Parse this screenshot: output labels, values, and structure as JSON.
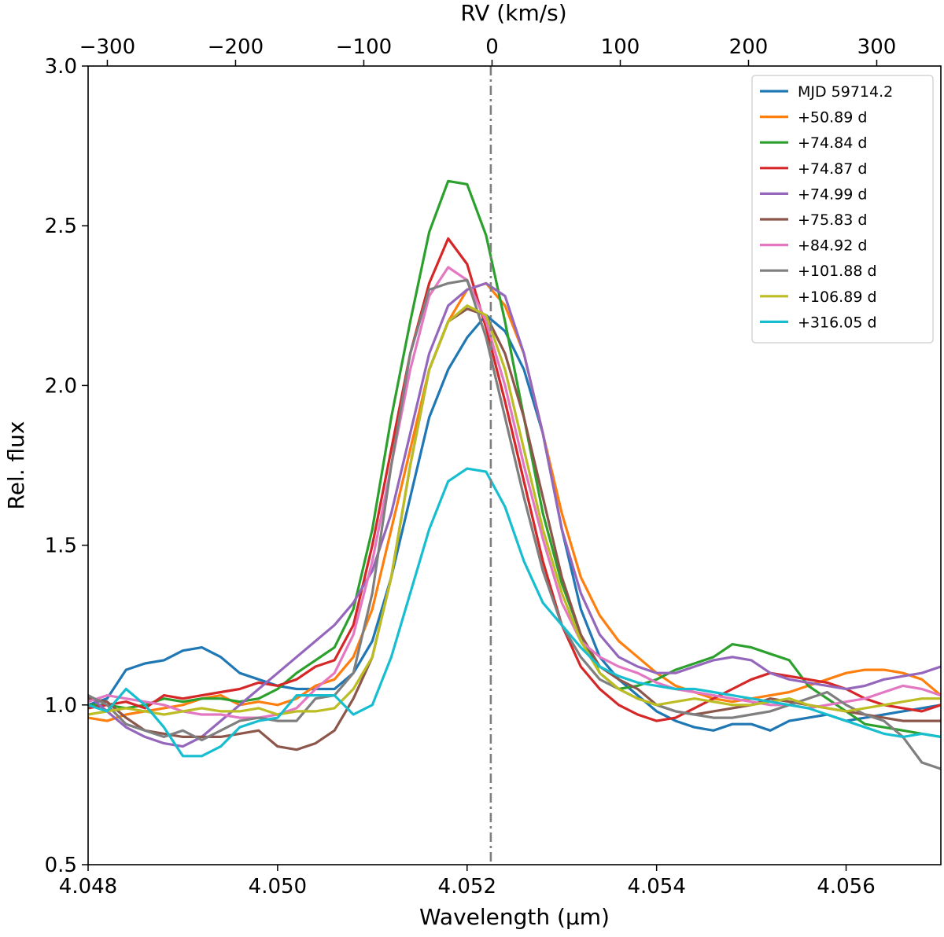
{
  "chart_data": {
    "type": "line",
    "xlabel": "Wavelength (μm)",
    "ylabel": "Rel. flux",
    "top_xlabel": "RV (km/s)",
    "xlim": [
      4.048,
      4.057
    ],
    "ylim": [
      0.5,
      3.0
    ],
    "rv_lim": [
      -315,
      350
    ],
    "xticks": [
      4.048,
      4.05,
      4.052,
      4.054,
      4.056
    ],
    "xtick_labels": [
      "4.048",
      "4.050",
      "4.052",
      "4.054",
      "4.056"
    ],
    "yticks": [
      0.5,
      1.0,
      1.5,
      2.0,
      2.5,
      3.0
    ],
    "ytick_labels": [
      "0.5",
      "1.0",
      "1.5",
      "2.0",
      "2.5",
      "3.0"
    ],
    "top_ticks": [
      -300,
      -200,
      -100,
      0,
      100,
      200,
      300
    ],
    "top_tick_labels": [
      "−300",
      "−200",
      "−100",
      "0",
      "100",
      "200",
      "300"
    ],
    "reference_line": {
      "x": 4.05225,
      "label": "0",
      "color": "#7f7f7f",
      "style": "dash-dot"
    },
    "grid": false,
    "legend_position": "top-right",
    "series": [
      {
        "name": "MJD 59714.2",
        "color": "#1f77b4",
        "x": [
          4.048,
          4.0482,
          4.0484,
          4.0486,
          4.0488,
          4.049,
          4.0492,
          4.0494,
          4.0496,
          4.0498,
          4.05,
          4.0502,
          4.0504,
          4.0506,
          4.0508,
          4.051,
          4.0512,
          4.0514,
          4.0516,
          4.0518,
          4.052,
          4.0522,
          4.0524,
          4.0526,
          4.0528,
          4.053,
          4.0532,
          4.0534,
          4.0536,
          4.0538,
          4.054,
          4.0542,
          4.0544,
          4.0546,
          4.0548,
          4.055,
          4.0552,
          4.0554,
          4.0556,
          4.0558,
          4.056,
          4.0562,
          4.0564,
          4.0566,
          4.0568,
          4.057
        ],
        "y": [
          1.0,
          1.02,
          1.11,
          1.13,
          1.14,
          1.17,
          1.18,
          1.15,
          1.1,
          1.08,
          1.06,
          1.05,
          1.05,
          1.05,
          1.1,
          1.2,
          1.4,
          1.65,
          1.9,
          2.05,
          2.15,
          2.22,
          2.17,
          2.05,
          1.85,
          1.55,
          1.3,
          1.15,
          1.08,
          1.03,
          0.98,
          0.95,
          0.93,
          0.92,
          0.94,
          0.94,
          0.92,
          0.95,
          0.96,
          0.97,
          0.95,
          0.96,
          0.97,
          0.98,
          0.99,
          1.0
        ]
      },
      {
        "name": "+50.89 d",
        "color": "#ff7f0e",
        "x": [
          4.048,
          4.0482,
          4.0484,
          4.0486,
          4.0488,
          4.049,
          4.0492,
          4.0494,
          4.0496,
          4.0498,
          4.05,
          4.0502,
          4.0504,
          4.0506,
          4.0508,
          4.051,
          4.0512,
          4.0514,
          4.0516,
          4.0518,
          4.052,
          4.0522,
          4.0524,
          4.0526,
          4.0528,
          4.053,
          4.0532,
          4.0534,
          4.0536,
          4.0538,
          4.054,
          4.0542,
          4.0544,
          4.0546,
          4.0548,
          4.055,
          4.0552,
          4.0554,
          4.0556,
          4.0558,
          4.056,
          4.0562,
          4.0564,
          4.0566,
          4.0568,
          4.057
        ],
        "y": [
          0.96,
          0.95,
          0.97,
          0.98,
          0.99,
          1.0,
          1.02,
          1.03,
          1.0,
          1.01,
          1.0,
          1.02,
          1.06,
          1.08,
          1.15,
          1.3,
          1.55,
          1.8,
          2.05,
          2.2,
          2.3,
          2.32,
          2.25,
          2.1,
          1.85,
          1.6,
          1.4,
          1.28,
          1.2,
          1.15,
          1.1,
          1.06,
          1.04,
          1.02,
          1.01,
          1.02,
          1.03,
          1.04,
          1.06,
          1.08,
          1.1,
          1.11,
          1.11,
          1.1,
          1.08,
          1.03
        ]
      },
      {
        "name": "+74.84 d",
        "color": "#2ca02c",
        "x": [
          4.048,
          4.0482,
          4.0484,
          4.0486,
          4.0488,
          4.049,
          4.0492,
          4.0494,
          4.0496,
          4.0498,
          4.05,
          4.0502,
          4.0504,
          4.0506,
          4.0508,
          4.051,
          4.0512,
          4.0514,
          4.0516,
          4.0518,
          4.052,
          4.0522,
          4.0524,
          4.0526,
          4.0528,
          4.053,
          4.0532,
          4.0534,
          4.0536,
          4.0538,
          4.054,
          4.0542,
          4.0544,
          4.0546,
          4.0548,
          4.055,
          4.0552,
          4.0554,
          4.0556,
          4.0558,
          4.056,
          4.0562,
          4.0564,
          4.0566,
          4.0568,
          4.057
        ],
        "y": [
          1.0,
          1.0,
          0.99,
          1.0,
          1.02,
          1.01,
          1.02,
          1.02,
          1.01,
          1.02,
          1.05,
          1.1,
          1.14,
          1.18,
          1.3,
          1.55,
          1.9,
          2.2,
          2.48,
          2.64,
          2.63,
          2.47,
          2.2,
          1.9,
          1.6,
          1.38,
          1.22,
          1.1,
          1.05,
          1.06,
          1.08,
          1.11,
          1.13,
          1.15,
          1.19,
          1.18,
          1.16,
          1.14,
          1.06,
          1.02,
          0.98,
          0.94,
          0.93,
          0.92,
          0.91,
          0.9
        ]
      },
      {
        "name": "+74.87 d",
        "color": "#d62728",
        "x": [
          4.048,
          4.0482,
          4.0484,
          4.0486,
          4.0488,
          4.049,
          4.0492,
          4.0494,
          4.0496,
          4.0498,
          4.05,
          4.0502,
          4.0504,
          4.0506,
          4.0508,
          4.051,
          4.0512,
          4.0514,
          4.0516,
          4.0518,
          4.052,
          4.0522,
          4.0524,
          4.0526,
          4.0528,
          4.053,
          4.0532,
          4.0534,
          4.0536,
          4.0538,
          4.054,
          4.0542,
          4.0544,
          4.0546,
          4.0548,
          4.055,
          4.0552,
          4.0554,
          4.0556,
          4.0558,
          4.056,
          4.0562,
          4.0564,
          4.0566,
          4.0568,
          4.057
        ],
        "y": [
          0.99,
          1.0,
          1.01,
          0.99,
          1.03,
          1.02,
          1.03,
          1.04,
          1.05,
          1.07,
          1.06,
          1.08,
          1.12,
          1.14,
          1.25,
          1.5,
          1.8,
          2.1,
          2.32,
          2.46,
          2.38,
          2.18,
          1.95,
          1.7,
          1.45,
          1.25,
          1.12,
          1.05,
          1.0,
          0.97,
          0.95,
          0.96,
          0.99,
          1.02,
          1.05,
          1.08,
          1.1,
          1.09,
          1.08,
          1.07,
          1.05,
          1.02,
          1.0,
          0.99,
          0.98,
          1.0
        ]
      },
      {
        "name": "+74.99 d",
        "color": "#9467bd",
        "x": [
          4.048,
          4.0482,
          4.0484,
          4.0486,
          4.0488,
          4.049,
          4.0492,
          4.0494,
          4.0496,
          4.0498,
          4.05,
          4.0502,
          4.0504,
          4.0506,
          4.0508,
          4.051,
          4.0512,
          4.0514,
          4.0516,
          4.0518,
          4.052,
          4.0522,
          4.0524,
          4.0526,
          4.0528,
          4.053,
          4.0532,
          4.0534,
          4.0536,
          4.0538,
          4.054,
          4.0542,
          4.0544,
          4.0546,
          4.0548,
          4.055,
          4.0552,
          4.0554,
          4.0556,
          4.0558,
          4.056,
          4.0562,
          4.0564,
          4.0566,
          4.0568,
          4.057
        ],
        "y": [
          1.03,
          0.98,
          0.93,
          0.9,
          0.88,
          0.87,
          0.9,
          0.95,
          1.0,
          1.05,
          1.1,
          1.15,
          1.2,
          1.25,
          1.32,
          1.42,
          1.6,
          1.85,
          2.1,
          2.25,
          2.3,
          2.32,
          2.28,
          2.1,
          1.85,
          1.55,
          1.35,
          1.22,
          1.15,
          1.12,
          1.1,
          1.1,
          1.12,
          1.14,
          1.15,
          1.14,
          1.1,
          1.08,
          1.07,
          1.06,
          1.05,
          1.06,
          1.08,
          1.09,
          1.1,
          1.12
        ]
      },
      {
        "name": "+75.83 d",
        "color": "#8c564b",
        "x": [
          4.048,
          4.0482,
          4.0484,
          4.0486,
          4.0488,
          4.049,
          4.0492,
          4.0494,
          4.0496,
          4.0498,
          4.05,
          4.0502,
          4.0504,
          4.0506,
          4.0508,
          4.051,
          4.0512,
          4.0514,
          4.0516,
          4.0518,
          4.052,
          4.0522,
          4.0524,
          4.0526,
          4.0528,
          4.053,
          4.0532,
          4.0534,
          4.0536,
          4.0538,
          4.054,
          4.0542,
          4.0544,
          4.0546,
          4.0548,
          4.055,
          4.0552,
          4.0554,
          4.0556,
          4.0558,
          4.056,
          4.0562,
          4.0564,
          4.0566,
          4.0568,
          4.057
        ],
        "y": [
          1.02,
          1.01,
          0.96,
          0.92,
          0.91,
          0.9,
          0.9,
          0.9,
          0.91,
          0.92,
          0.87,
          0.86,
          0.88,
          0.92,
          1.02,
          1.15,
          1.4,
          1.75,
          2.05,
          2.2,
          2.24,
          2.22,
          2.1,
          1.9,
          1.65,
          1.4,
          1.22,
          1.12,
          1.08,
          1.05,
          1.0,
          0.98,
          0.97,
          0.98,
          0.99,
          1.0,
          1.02,
          1.01,
          1.0,
          0.99,
          0.98,
          0.97,
          0.96,
          0.95,
          0.95,
          0.95
        ]
      },
      {
        "name": "+84.92 d",
        "color": "#e377c2",
        "x": [
          4.048,
          4.0482,
          4.0484,
          4.0486,
          4.0488,
          4.049,
          4.0492,
          4.0494,
          4.0496,
          4.0498,
          4.05,
          4.0502,
          4.0504,
          4.0506,
          4.0508,
          4.051,
          4.0512,
          4.0514,
          4.0516,
          4.0518,
          4.052,
          4.0522,
          4.0524,
          4.0526,
          4.0528,
          4.053,
          4.0532,
          4.0534,
          4.0536,
          4.0538,
          4.054,
          4.0542,
          4.0544,
          4.0546,
          4.0548,
          4.055,
          4.0552,
          4.0554,
          4.0556,
          4.0558,
          4.056,
          4.0562,
          4.0564,
          4.0566,
          4.0568,
          4.057
        ],
        "y": [
          1.01,
          1.03,
          1.02,
          1.01,
          1.0,
          0.98,
          0.97,
          0.97,
          0.96,
          0.96,
          0.97,
          0.99,
          1.05,
          1.1,
          1.22,
          1.45,
          1.75,
          2.05,
          2.28,
          2.37,
          2.33,
          2.2,
          2.0,
          1.75,
          1.52,
          1.32,
          1.2,
          1.15,
          1.12,
          1.1,
          1.07,
          1.05,
          1.04,
          1.03,
          1.02,
          1.01,
          1.0,
          1.0,
          0.99,
          1.0,
          1.01,
          1.02,
          1.04,
          1.06,
          1.05,
          1.03
        ]
      },
      {
        "name": "+101.88 d",
        "color": "#7f7f7f",
        "x": [
          4.048,
          4.0482,
          4.0484,
          4.0486,
          4.0488,
          4.049,
          4.0492,
          4.0494,
          4.0496,
          4.0498,
          4.05,
          4.0502,
          4.0504,
          4.0506,
          4.0508,
          4.051,
          4.0512,
          4.0514,
          4.0516,
          4.0518,
          4.052,
          4.0522,
          4.0524,
          4.0526,
          4.0528,
          4.053,
          4.0532,
          4.0534,
          4.0536,
          4.0538,
          4.054,
          4.0542,
          4.0544,
          4.0546,
          4.0548,
          4.055,
          4.0552,
          4.0554,
          4.0556,
          4.0558,
          4.056,
          4.0562,
          4.0564,
          4.0566,
          4.0568,
          4.057
        ],
        "y": [
          1.03,
          1.0,
          0.94,
          0.92,
          0.9,
          0.92,
          0.89,
          0.92,
          0.95,
          0.96,
          0.95,
          0.95,
          1.02,
          1.03,
          1.1,
          1.35,
          1.75,
          2.1,
          2.3,
          2.32,
          2.33,
          2.15,
          1.9,
          1.65,
          1.42,
          1.25,
          1.15,
          1.08,
          1.05,
          1.02,
          1.0,
          0.98,
          0.97,
          0.96,
          0.96,
          0.97,
          0.98,
          1.0,
          1.02,
          1.04,
          1.0,
          0.97,
          0.95,
          0.9,
          0.82,
          0.8
        ]
      },
      {
        "name": "+106.89 d",
        "color": "#bcbd22",
        "x": [
          4.048,
          4.0482,
          4.0484,
          4.0486,
          4.0488,
          4.049,
          4.0492,
          4.0494,
          4.0496,
          4.0498,
          4.05,
          4.0502,
          4.0504,
          4.0506,
          4.0508,
          4.051,
          4.0512,
          4.0514,
          4.0516,
          4.0518,
          4.052,
          4.0522,
          4.0524,
          4.0526,
          4.0528,
          4.053,
          4.0532,
          4.0534,
          4.0536,
          4.0538,
          4.054,
          4.0542,
          4.0544,
          4.0546,
          4.0548,
          4.055,
          4.0552,
          4.0554,
          4.0556,
          4.0558,
          4.056,
          4.0562,
          4.0564,
          4.0566,
          4.0568,
          4.057
        ],
        "y": [
          0.97,
          0.98,
          0.99,
          0.98,
          0.97,
          0.98,
          0.99,
          0.98,
          0.98,
          0.99,
          0.97,
          0.98,
          0.98,
          0.99,
          1.05,
          1.15,
          1.4,
          1.75,
          2.05,
          2.2,
          2.25,
          2.22,
          2.05,
          1.8,
          1.55,
          1.35,
          1.2,
          1.1,
          1.05,
          1.02,
          1.0,
          1.01,
          1.02,
          1.01,
          1.0,
          1.0,
          1.01,
          1.02,
          1.0,
          0.99,
          0.98,
          0.99,
          1.0,
          1.01,
          1.02,
          1.02
        ]
      },
      {
        "name": "+316.05 d",
        "color": "#17becf",
        "x": [
          4.048,
          4.0482,
          4.0484,
          4.0486,
          4.0488,
          4.049,
          4.0492,
          4.0494,
          4.0496,
          4.0498,
          4.05,
          4.0502,
          4.0504,
          4.0506,
          4.0508,
          4.051,
          4.0512,
          4.0514,
          4.0516,
          4.0518,
          4.052,
          4.0522,
          4.0524,
          4.0526,
          4.0528,
          4.053,
          4.0532,
          4.0534,
          4.0536,
          4.0538,
          4.054,
          4.0542,
          4.0544,
          4.0546,
          4.0548,
          4.055,
          4.0552,
          4.0554,
          4.0556,
          4.0558,
          4.056,
          4.0562,
          4.0564,
          4.0566,
          4.0568,
          4.057
        ],
        "y": [
          1.0,
          0.98,
          1.05,
          1.0,
          0.93,
          0.84,
          0.84,
          0.87,
          0.93,
          0.95,
          0.96,
          1.03,
          1.03,
          1.03,
          0.97,
          1.0,
          1.15,
          1.35,
          1.55,
          1.7,
          1.74,
          1.73,
          1.62,
          1.45,
          1.32,
          1.25,
          1.18,
          1.12,
          1.09,
          1.07,
          1.06,
          1.05,
          1.05,
          1.04,
          1.03,
          1.02,
          1.01,
          1.0,
          0.99,
          0.97,
          0.95,
          0.93,
          0.91,
          0.9,
          0.91,
          0.9
        ]
      }
    ]
  }
}
